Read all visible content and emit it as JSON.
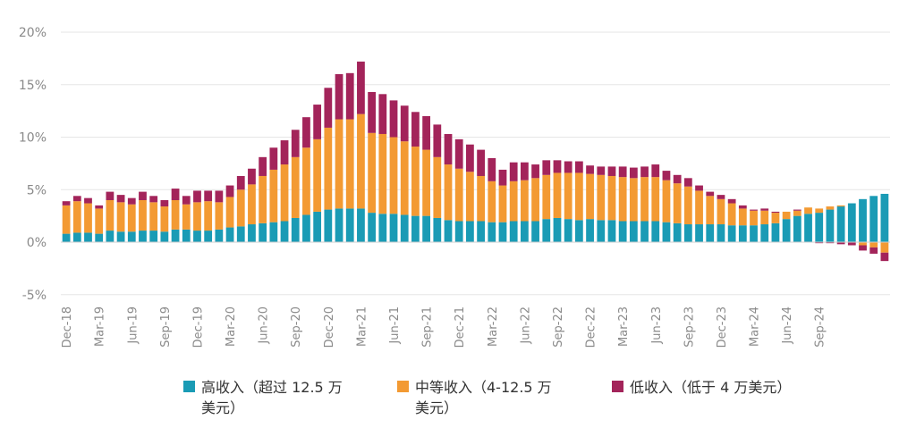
{
  "chart_data": {
    "type": "bar",
    "stacked": true,
    "title": "",
    "xlabel": "",
    "ylabel": "",
    "ylim": [
      -5,
      20
    ],
    "y_ticks": [
      -5,
      0,
      5,
      10,
      15,
      20
    ],
    "y_tick_labels": [
      "-5%",
      "0%",
      "5%",
      "10%",
      "15%",
      "20%"
    ],
    "grid": true,
    "legend_position": "bottom",
    "start_month": "2018-12",
    "x_tick_labels": [
      "Dec-18",
      "Mar-19",
      "Jun-19",
      "Sep-19",
      "Dec-19",
      "Mar-20",
      "Jun-20",
      "Sep-20",
      "Dec-20",
      "Mar-21",
      "Jun-21",
      "Sep-21",
      "Dec-21",
      "Mar-22",
      "Jun-22",
      "Sep-22",
      "Dec-22",
      "Mar-23",
      "Jun-23",
      "Sep-23",
      "Dec-23",
      "Mar-24",
      "Jun-24",
      "Sep-24"
    ],
    "colors": {
      "high": "#1a9bb5",
      "middle": "#f39a33",
      "low": "#a3245a"
    },
    "series": [
      {
        "name": "高收入（超过 12.5 万\n美元）",
        "key": "high",
        "values": [
          0.8,
          0.9,
          0.9,
          0.8,
          1.1,
          1.0,
          1.0,
          1.1,
          1.1,
          1.0,
          1.2,
          1.2,
          1.1,
          1.1,
          1.2,
          1.4,
          1.5,
          1.7,
          1.8,
          1.9,
          2.0,
          2.3,
          2.6,
          2.9,
          3.1,
          3.2,
          3.2,
          3.2,
          2.8,
          2.7,
          2.7,
          2.6,
          2.5,
          2.5,
          2.3,
          2.1,
          2.0,
          2.0,
          2.0,
          1.9,
          1.9,
          2.0,
          2.0,
          2.0,
          2.2,
          2.3,
          2.2,
          2.1,
          2.2,
          2.1,
          2.1,
          2.0,
          2.0,
          2.0,
          2.0,
          1.9,
          1.8,
          1.7,
          1.7,
          1.7,
          1.7,
          1.6,
          1.6,
          1.6,
          1.7,
          1.8,
          2.2,
          2.5,
          2.7,
          2.8,
          3.1,
          3.4,
          3.7,
          4.1,
          4.4,
          4.6
        ]
      },
      {
        "name": "中等收入（4-12.5 万\n美元）",
        "key": "middle",
        "values": [
          2.7,
          3.0,
          2.8,
          2.4,
          2.9,
          2.8,
          2.6,
          2.9,
          2.7,
          2.4,
          2.8,
          2.4,
          2.7,
          2.8,
          2.6,
          2.9,
          3.5,
          3.8,
          4.5,
          5.0,
          5.4,
          5.8,
          6.4,
          6.9,
          7.8,
          8.5,
          8.5,
          9.0,
          7.6,
          7.6,
          7.3,
          7.0,
          6.6,
          6.3,
          5.8,
          5.3,
          5.0,
          4.7,
          4.3,
          3.9,
          3.5,
          3.8,
          3.9,
          4.1,
          4.2,
          4.3,
          4.4,
          4.5,
          4.3,
          4.3,
          4.2,
          4.2,
          4.1,
          4.2,
          4.2,
          4.0,
          3.8,
          3.6,
          3.2,
          2.7,
          2.4,
          2.1,
          1.6,
          1.4,
          1.3,
          1.0,
          0.7,
          0.5,
          0.6,
          0.4,
          0.3,
          0.1,
          0.0,
          -0.3,
          -0.5,
          -1.0
        ]
      },
      {
        "name": "低收入（低于 4 万美元）",
        "key": "low",
        "values": [
          0.4,
          0.5,
          0.5,
          0.3,
          0.8,
          0.7,
          0.6,
          0.8,
          0.6,
          0.6,
          1.1,
          0.8,
          1.1,
          1.0,
          1.1,
          1.1,
          1.3,
          1.5,
          1.8,
          2.1,
          2.3,
          2.6,
          2.9,
          3.3,
          3.8,
          4.3,
          4.4,
          5.0,
          3.9,
          3.8,
          3.5,
          3.4,
          3.3,
          3.2,
          3.1,
          2.9,
          2.8,
          2.6,
          2.5,
          2.2,
          1.5,
          1.8,
          1.7,
          1.3,
          1.4,
          1.2,
          1.1,
          1.1,
          0.8,
          0.8,
          0.9,
          1.0,
          1.0,
          1.0,
          1.2,
          0.9,
          0.8,
          0.8,
          0.5,
          0.4,
          0.4,
          0.4,
          0.3,
          0.1,
          0.2,
          0.1,
          0.0,
          0.1,
          0.0,
          -0.1,
          -0.1,
          -0.2,
          -0.3,
          -0.5,
          -0.6,
          -0.8
        ]
      }
    ]
  }
}
